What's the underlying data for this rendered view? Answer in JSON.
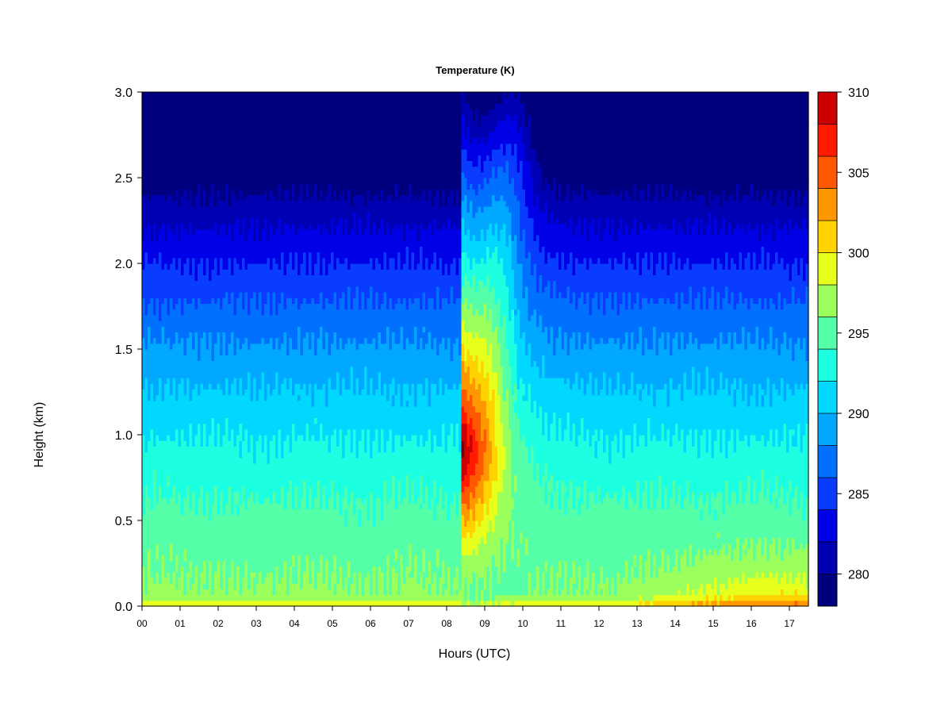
{
  "chart_data": {
    "type": "heatmap",
    "title": "Temperature (K)",
    "xlabel": "Hours (UTC)",
    "ylabel": "Height (km)",
    "x_ticks": [
      "00",
      "01",
      "02",
      "03",
      "04",
      "05",
      "06",
      "07",
      "08",
      "09",
      "10",
      "11",
      "12",
      "13",
      "14",
      "15",
      "16",
      "17"
    ],
    "x_range": [
      0,
      17.5
    ],
    "y_ticks": [
      "0.0",
      "0.5",
      "1.0",
      "1.5",
      "2.0",
      "2.5",
      "3.0"
    ],
    "y_range": [
      0,
      3.0
    ],
    "colorbar": {
      "ticks": [
        "280",
        "285",
        "290",
        "295",
        "300",
        "305",
        "310"
      ],
      "range": [
        278,
        310
      ],
      "levels": [
        278,
        280,
        282,
        284,
        286,
        288,
        290,
        292,
        294,
        296,
        298,
        300,
        302,
        304,
        306,
        308,
        310
      ],
      "colors": [
        "#00007F",
        "#0000B3",
        "#0000E6",
        "#0A3CFF",
        "#0070FF",
        "#00A8FF",
        "#00D8FF",
        "#1CFFE0",
        "#55FFA8",
        "#9BFF5C",
        "#E6FF1C",
        "#FFD200",
        "#FF9800",
        "#FF5800",
        "#FF1A00",
        "#CC0000",
        "#7F0000"
      ]
    },
    "grid": false,
    "legend": "right-colorbar"
  }
}
